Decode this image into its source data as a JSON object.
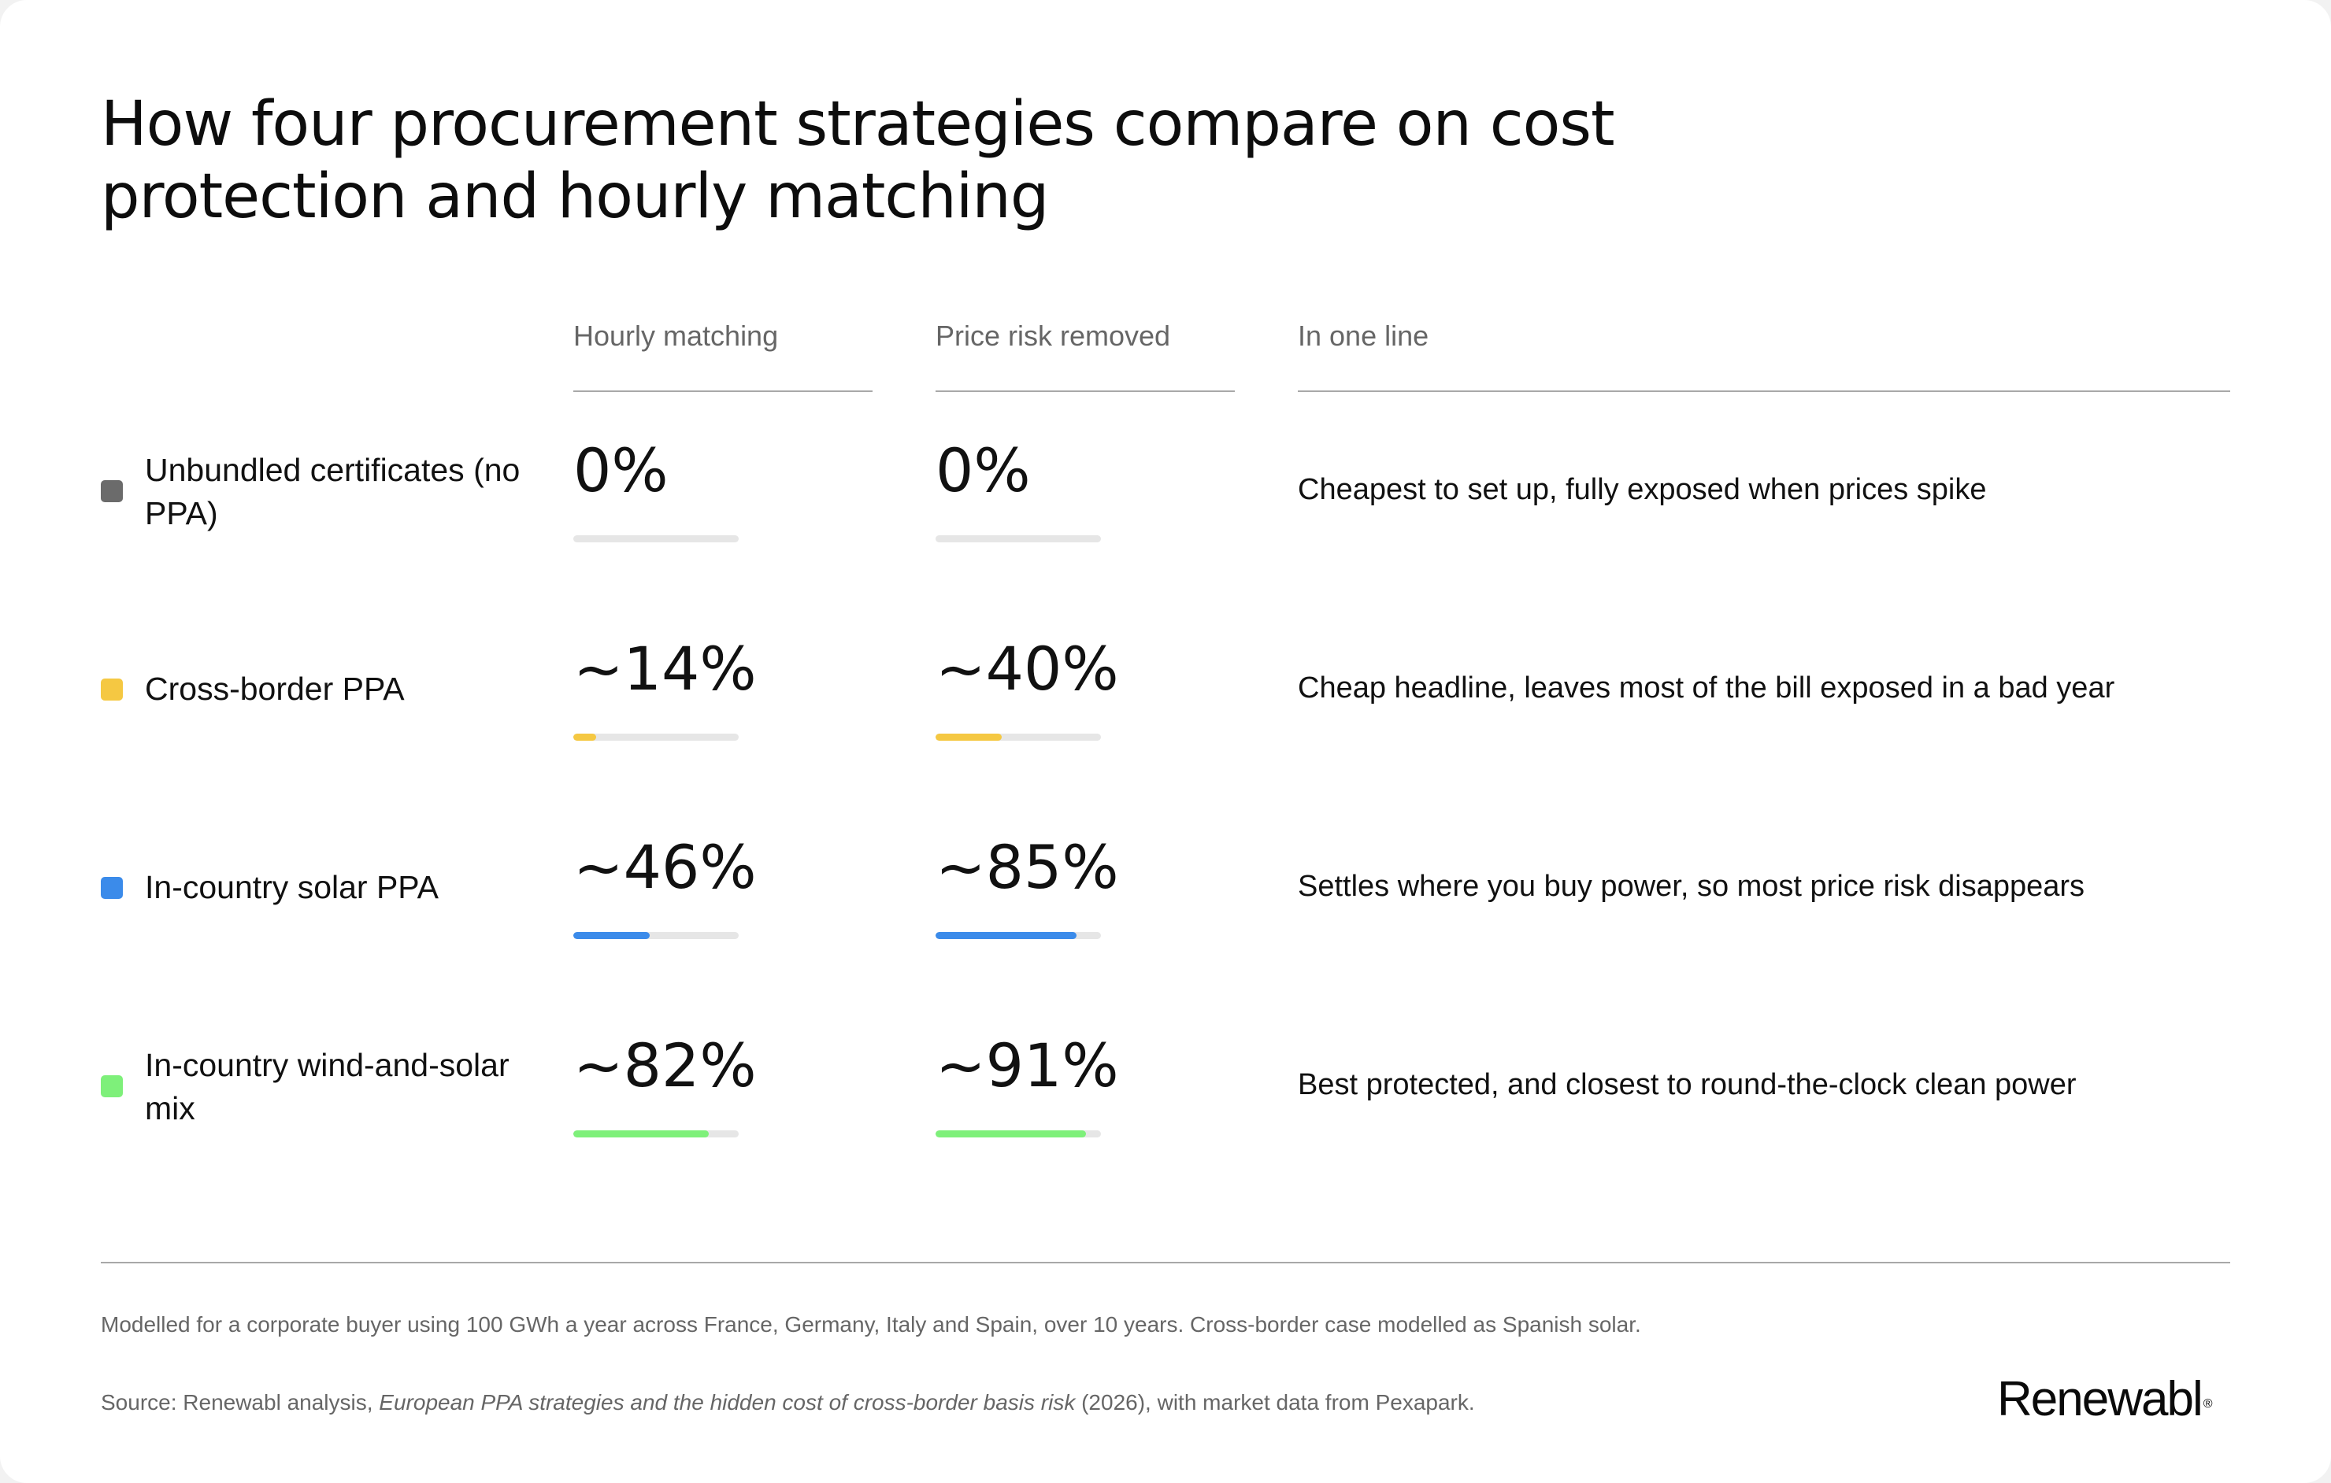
{
  "title": "How four procurement strategies compare on cost protection and hourly matching",
  "columns": {
    "hourly": "Hourly matching",
    "price_risk": "Price risk removed",
    "one_line": "In one line"
  },
  "chart_data": {
    "type": "table",
    "title": "How four procurement strategies compare on cost protection and hourly matching",
    "columns": [
      "Hourly matching",
      "Price risk removed",
      "In one line"
    ],
    "rows": [
      {
        "name": "Unbundled certificates (no PPA)",
        "color": "#6b6b6b",
        "hourly_label": "0%",
        "hourly_value": 0,
        "price_label": "0%",
        "price_value": 0,
        "summary": "Cheapest to set up, fully exposed when prices spike"
      },
      {
        "name": "Cross-border PPA",
        "color": "#f5c842",
        "hourly_label": "~14%",
        "hourly_value": 14,
        "price_label": "~40%",
        "price_value": 40,
        "summary": "Cheap headline, leaves most of the bill exposed in a bad year"
      },
      {
        "name": "In-country solar PPA",
        "color": "#3b8bea",
        "hourly_label": "~46%",
        "hourly_value": 46,
        "price_label": "~85%",
        "price_value": 85,
        "summary": "Settles where you buy power, so most price risk disappears"
      },
      {
        "name": "In-country wind-and-solar mix",
        "color": "#7ef07a",
        "hourly_label": "~82%",
        "hourly_value": 82,
        "price_label": "~91%",
        "price_value": 91,
        "summary": "Best protected, and closest to round-the-clock clean power"
      }
    ]
  },
  "footer": {
    "note": "Modelled for a corporate buyer using 100 GWh a year across France, Germany, Italy and Spain, over 10 years. Cross-border case modelled as Spanish solar.",
    "source_prefix": "Source: Renewabl analysis, ",
    "source_title": "European PPA strategies and the hidden cost of cross-border basis risk",
    "source_suffix": " (2026), with market data from Pexapark."
  },
  "brand": {
    "name": "Renewabl",
    "mark": "®"
  }
}
